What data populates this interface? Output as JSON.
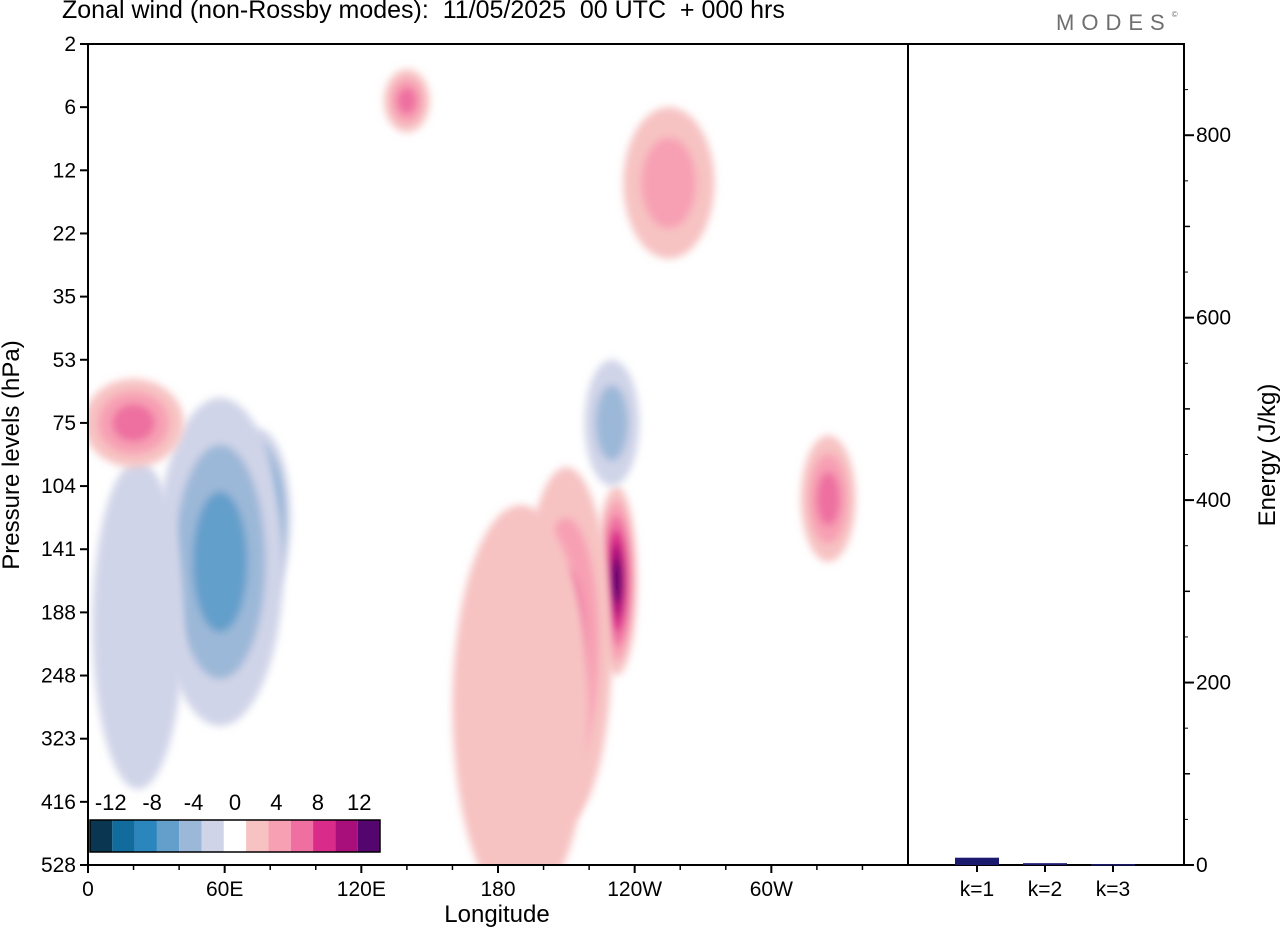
{
  "title": "Zonal wind (non-Rossby modes):  11/05/2025  00 UTC  + 000 hrs",
  "logo": {
    "text": "MODES",
    "mark": "©"
  },
  "chart_data": [
    {
      "type": "heatmap",
      "title": "Zonal wind (non-Rossby modes):  11/05/2025  00 UTC  + 000 hrs",
      "xlabel": "Longitude",
      "ylabel": "Pressure levels (hPa)",
      "x_ticks": [
        "0",
        "60E",
        "120E",
        "180",
        "120W",
        "60W"
      ],
      "x_tick_degrees": [
        0,
        60,
        120,
        180,
        240,
        300
      ],
      "xlim": [
        0,
        360
      ],
      "y_ticks": [
        "2",
        "6",
        "12",
        "22",
        "35",
        "53",
        "75",
        "104",
        "141",
        "188",
        "248",
        "323",
        "416",
        "528"
      ],
      "colorbar": {
        "labels": [
          "-12",
          "-8",
          "-4",
          "0",
          "4",
          "8",
          "12"
        ],
        "levels": [
          -14,
          -12,
          -10,
          -8,
          -6,
          -4,
          -2,
          2,
          4,
          6,
          8,
          10,
          12,
          14
        ],
        "colors": [
          "#0b3652",
          "#116b9c",
          "#2b86bd",
          "#649fcb",
          "#9cb8d8",
          "#d0d4e8",
          "#ffffff",
          "#f7c2c2",
          "#f7a0b4",
          "#ee6fa0",
          "#d92c8a",
          "#a90f7a",
          "#54056e"
        ]
      },
      "features": [
        {
          "lon": 75,
          "level_index": 7.5,
          "value": -13,
          "rx": 14,
          "ry": 1.4
        },
        {
          "lon": 58,
          "level_index": 8.2,
          "value": -8,
          "rx": 28,
          "ry": 2.6
        },
        {
          "lon": 22,
          "level_index": 9.2,
          "value": -4,
          "rx": 20,
          "ry": 2.6
        },
        {
          "lon": 232,
          "level_index": 8.5,
          "value": 13,
          "rx": 9,
          "ry": 1.5
        },
        {
          "lon": 210,
          "level_index": 9.5,
          "value": 7,
          "rx": 20,
          "ry": 2.8
        },
        {
          "lon": 190,
          "level_index": 10.5,
          "value": 4,
          "rx": 30,
          "ry": 3.2
        },
        {
          "lon": 20,
          "level_index": 6.0,
          "value": 7,
          "rx": 22,
          "ry": 0.7
        },
        {
          "lon": 325,
          "level_index": 7.2,
          "value": 7,
          "rx": 12,
          "ry": 1.0
        },
        {
          "lon": 230,
          "level_index": 6.0,
          "value": -6,
          "rx": 12,
          "ry": 1.0
        },
        {
          "lon": 140,
          "level_index": 0.9,
          "value": 8,
          "rx": 10,
          "ry": 0.5
        },
        {
          "lon": 255,
          "level_index": 2.2,
          "value": 5,
          "rx": 20,
          "ry": 1.2
        }
      ]
    },
    {
      "type": "bar",
      "categories": [
        "k=1",
        "k=2",
        "k=3"
      ],
      "values": [
        8,
        2,
        1
      ],
      "ylabel": "Energy (J/kg)",
      "ylim": [
        0,
        900
      ],
      "y_ticks": [
        "0",
        "200",
        "400",
        "600",
        "800"
      ],
      "bar_color": "#1a1a6e"
    }
  ]
}
